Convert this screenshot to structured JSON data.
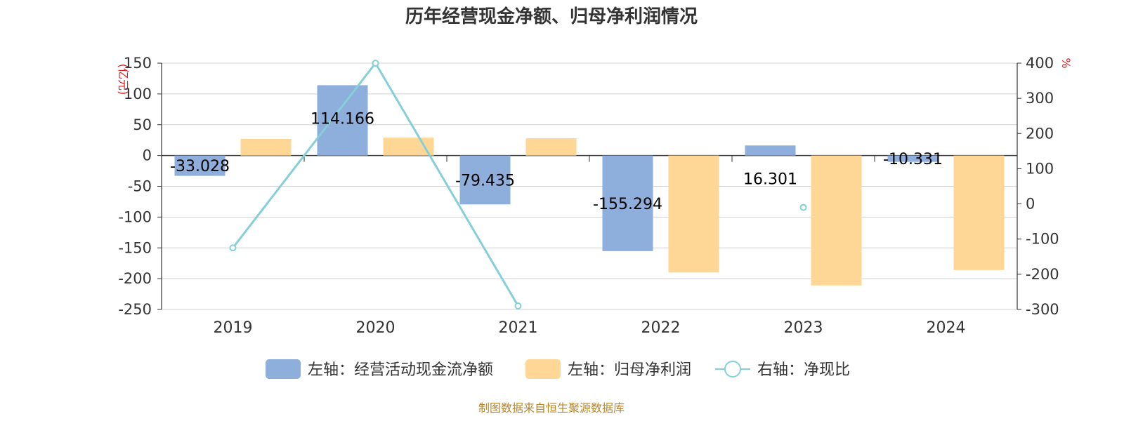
{
  "chart_data": {
    "type": "bar",
    "title": "历年经营现金净额、归母净利润情况",
    "categories": [
      "2019",
      "2020",
      "2021",
      "2022",
      "2023",
      "2024"
    ],
    "series": [
      {
        "name": "左轴：经营活动现金流净额",
        "axis": "left",
        "type": "bar",
        "color": "#8eaedb",
        "values": [
          -33.028,
          114.166,
          -79.435,
          -155.294,
          16.301,
          -10.331
        ],
        "labels": [
          "-33.028",
          "114.166",
          "-79.435",
          "-155.294",
          "16.301",
          "-10.331"
        ]
      },
      {
        "name": "左轴：归母净利润",
        "axis": "left",
        "type": "bar",
        "color": "#fed797",
        "values": [
          27,
          29,
          28,
          -190,
          -211,
          -186
        ]
      },
      {
        "name": "右轴：净现比",
        "axis": "right",
        "type": "line",
        "color": "#85d0d8",
        "values": [
          -125,
          400,
          -290,
          null,
          -10,
          null
        ]
      }
    ],
    "y_left": {
      "label": "(亿元)",
      "range": [
        -250,
        150
      ],
      "ticks": [
        150,
        100,
        50,
        0,
        -50,
        -100,
        -150,
        -200,
        -250
      ]
    },
    "y_right": {
      "label": "%",
      "range": [
        -300,
        400
      ],
      "ticks": [
        400,
        300,
        200,
        100,
        0,
        -100,
        -200,
        -300
      ]
    },
    "grid": true,
    "legend_position": "bottom",
    "source": "制图数据来自恒生聚源数据库"
  }
}
